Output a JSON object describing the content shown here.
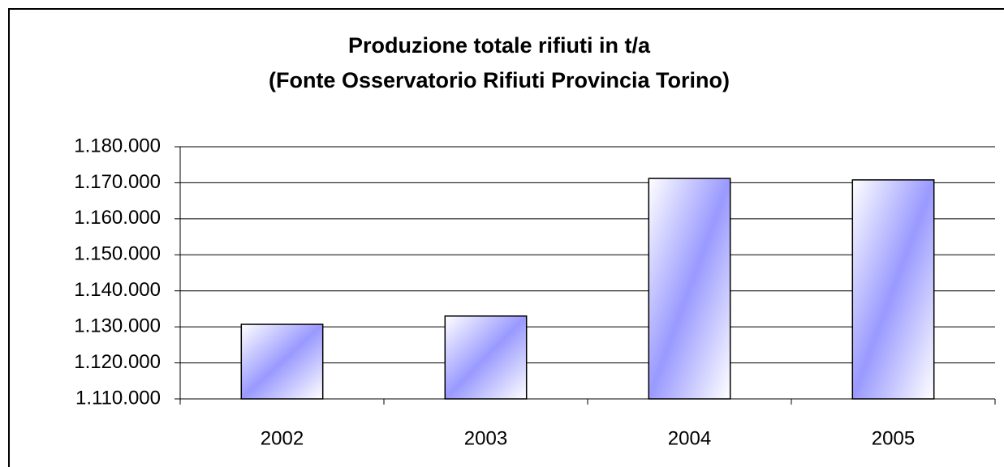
{
  "chart_data": {
    "type": "bar",
    "title": [
      "Produzione totale rifiuti in t/a",
      "(Fonte Osservatorio Rifiuti Provincia Torino)"
    ],
    "categories": [
      "2002",
      "2003",
      "2004",
      "2005"
    ],
    "values": [
      1130700,
      1133000,
      1171200,
      1170800
    ],
    "color": "#9999ff",
    "ylim": [
      1110000,
      1180000
    ],
    "yticks": [
      {
        "value": 1110000,
        "label": "1.110.000"
      },
      {
        "value": 1120000,
        "label": "1.120.000"
      },
      {
        "value": 1130000,
        "label": "1.130.000"
      },
      {
        "value": 1140000,
        "label": "1.140.000"
      },
      {
        "value": 1150000,
        "label": "1.150.000"
      },
      {
        "value": 1160000,
        "label": "1.160.000"
      },
      {
        "value": 1170000,
        "label": "1.170.000"
      },
      {
        "value": 1180000,
        "label": "1.180.000"
      }
    ],
    "grid": true
  }
}
